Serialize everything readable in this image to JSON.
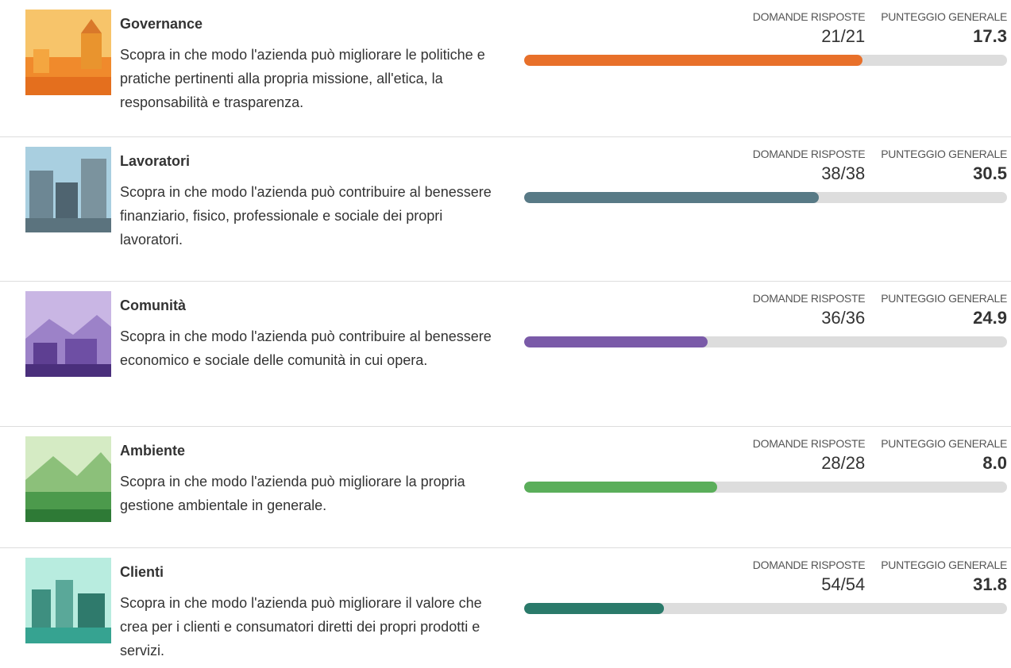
{
  "bar_range": [
    0,
    100
  ],
  "sections": [
    {
      "title": "Governance",
      "description": "Scopra in che modo l'azienda può migliorare le politiche e pratiche pertinenti alla propria missione, all'etica, la responsabilità e trasparenza.",
      "answered_label": "DOMANDE RISPOSTE",
      "answered": "21/21",
      "score_label": "PUNTEGGIO GENERALE",
      "score": "17.3",
      "progress": 70,
      "color": "#e8702a"
    },
    {
      "title": "Lavoratori",
      "description": "Scopra in che modo l'azienda può contribuire al benessere finanziario, fisico, professionale e sociale dei propri lavoratori.",
      "answered_label": "DOMANDE RISPOSTE",
      "answered": "38/38",
      "score_label": "PUNTEGGIO GENERALE",
      "score": "30.5",
      "progress": 61,
      "color": "#587a86"
    },
    {
      "title": "Comunità",
      "description": "Scopra in che modo l'azienda può contribuire al benessere economico e sociale delle comunità in cui opera.",
      "answered_label": "DOMANDE RISPOSTE",
      "answered": "36/36",
      "score_label": "PUNTEGGIO GENERALE",
      "score": "24.9",
      "progress": 38,
      "color": "#7a5aa8"
    },
    {
      "title": "Ambiente",
      "description": "Scopra in che modo l'azienda può migliorare la propria gestione ambientale in generale.",
      "answered_label": "DOMANDE RISPOSTE",
      "answered": "28/28",
      "score_label": "PUNTEGGIO GENERALE",
      "score": "8.0",
      "progress": 40,
      "color": "#5aae5a"
    },
    {
      "title": "Clienti",
      "description": "Scopra in che modo l'azienda può migliorare il valore che crea per i clienti e consumatori diretti dei propri prodotti e servizi.",
      "answered_label": "DOMANDE RISPOSTE",
      "answered": "54/54",
      "score_label": "PUNTEGGIO GENERALE",
      "score": "31.8",
      "progress": 29,
      "color": "#2a7a6a"
    }
  ]
}
